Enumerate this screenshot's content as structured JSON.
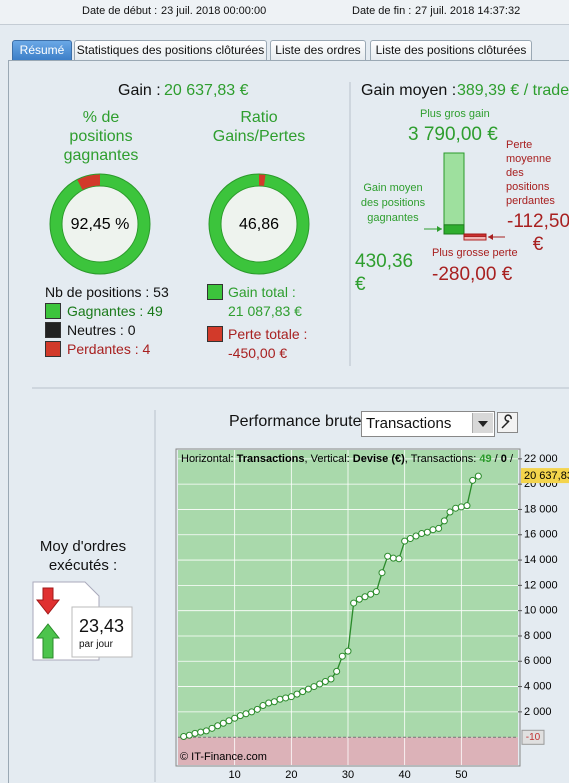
{
  "header": {
    "start_label": "Date de début :",
    "start_value": "23 juil. 2018 00:00:00",
    "end_label": "Date de fin :",
    "end_value": "27 juil. 2018 14:37:32"
  },
  "tabs": [
    "Résumé",
    "Statistiques des positions clôturées",
    "Liste des ordres",
    "Liste des positions clôturées"
  ],
  "gain": {
    "label": "Gain :",
    "value": "20 637,83 €"
  },
  "win_rate": {
    "title": "% de positions gagnantes",
    "value": 92.45,
    "label": "92,45 %"
  },
  "ratio": {
    "title": "Ratio Gains/Pertes",
    "value": 46.86,
    "label": "46,86"
  },
  "positions": {
    "total": "Nb de positions : 53",
    "winning": "Gagnantes : 49",
    "neutral": "Neutres : 0",
    "losing": "Perdantes : 4"
  },
  "totals": {
    "gain_label": "Gain total :",
    "gain": {
      "value": 21087.83,
      "label": "21 087,83 €"
    },
    "loss_label": "Perte totale :",
    "loss": {
      "value": -450,
      "label": "-450,00 €"
    }
  },
  "average": {
    "label": "Gain moyen :",
    "value": "389,39 € / trade"
  },
  "extremes": {
    "max_gain_label": "Plus gros gain",
    "max_gain": {
      "value": 3790,
      "label": "3 790,00 €"
    },
    "avg_gain_label": "Gain moyen des positions gagnantes",
    "avg_gain": {
      "value": 430.36,
      "label": "430,36 €"
    },
    "avg_loss_label": "Perte moyenne des positions perdantes",
    "avg_loss": {
      "value": -112.5,
      "label": "-112,50 €"
    },
    "max_loss_label": "Plus grosse perte",
    "max_loss": {
      "value": -280,
      "label": "-280,00 €"
    }
  },
  "orders": {
    "label": "Moy d'ordres exécutés :",
    "value": "23,43",
    "unit": "par jour"
  },
  "performance": {
    "label": "Performance brute",
    "mode": "Transactions"
  },
  "chart_data": {
    "type": "line",
    "info": [
      {
        "text": "Horizontal: "
      },
      {
        "text": "Transactions",
        "bold": true
      },
      {
        "text": ", Vertical: "
      },
      {
        "text": "Devise (€)",
        "bold": true
      },
      {
        "text": ", Transactions: "
      },
      {
        "text": "49",
        "bold": true,
        "color": "#2a9a2a"
      },
      {
        "text": " / "
      },
      {
        "text": "0",
        "bold": true
      },
      {
        "text": " / "
      }
    ],
    "watermark": "© IT-Finance.com",
    "x": [
      1,
      2,
      3,
      4,
      5,
      6,
      7,
      8,
      9,
      10,
      11,
      12,
      13,
      14,
      15,
      16,
      17,
      18,
      19,
      20,
      21,
      22,
      23,
      24,
      25,
      26,
      27,
      28,
      29,
      30,
      31,
      32,
      33,
      34,
      35,
      36,
      37,
      38,
      39,
      40,
      41,
      42,
      43,
      44,
      45,
      46,
      47,
      48,
      49,
      50,
      51,
      52,
      53
    ],
    "values": [
      50,
      150,
      300,
      400,
      500,
      700,
      900,
      1100,
      1300,
      1500,
      1700,
      1850,
      2000,
      2200,
      2500,
      2700,
      2800,
      3000,
      3100,
      3200,
      3400,
      3600,
      3800,
      4000,
      4200,
      4400,
      4600,
      5200,
      6400,
      6800,
      10600,
      10900,
      11100,
      11300,
      11500,
      13000,
      14300,
      14150,
      14100,
      15500,
      15700,
      15900,
      16100,
      16200,
      16400,
      16500,
      17100,
      17800,
      18100,
      18200,
      18300,
      20300,
      20637.83
    ],
    "color": "#2a8a2a",
    "loss_color": "#c03030",
    "positive_fill": "#a9d9ab",
    "negative_fill": "#dcb2b8",
    "xlim": [
      0,
      60
    ],
    "xticks": [
      10,
      20,
      30,
      40,
      50
    ],
    "ylim": [
      -2200,
      22700
    ],
    "yticks": [
      {
        "value": 2000,
        "label": "2 000"
      },
      {
        "value": 4000,
        "label": "4 000"
      },
      {
        "value": 6000,
        "label": "6 000"
      },
      {
        "value": 8000,
        "label": "8 000"
      },
      {
        "value": 10000,
        "label": "10 000"
      },
      {
        "value": 12000,
        "label": "12 000"
      },
      {
        "value": 14000,
        "label": "14 000"
      },
      {
        "value": 16000,
        "label": "16 000"
      },
      {
        "value": 18000,
        "label": "18 000"
      },
      {
        "value": 20000,
        "label": "20 000"
      },
      {
        "value": 22000,
        "label": "22 000"
      }
    ],
    "reference": -10,
    "current": {
      "value": 20637.83,
      "label": "20 637,83"
    },
    "grid": true
  }
}
